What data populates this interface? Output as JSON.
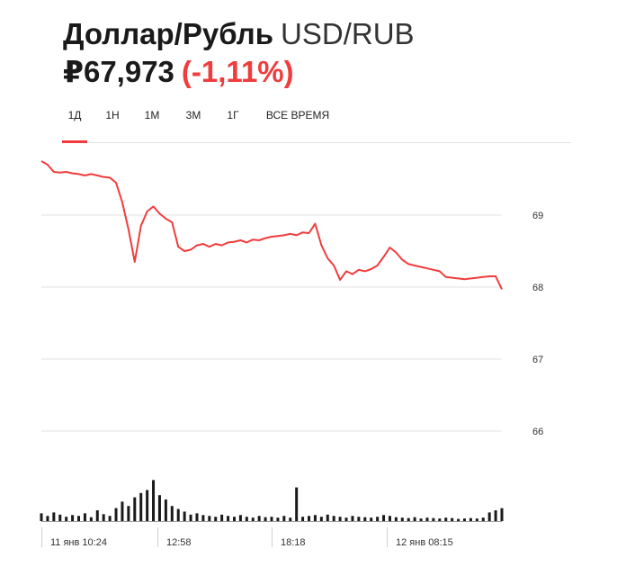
{
  "header": {
    "name": "Доллар/Рубль",
    "ticker": "USD/RUB",
    "price": "₽67,973",
    "change": "(-1,11%)"
  },
  "tabs": [
    {
      "label": "1Д",
      "active": true
    },
    {
      "label": "1Н",
      "active": false
    },
    {
      "label": "1М",
      "active": false
    },
    {
      "label": "3М",
      "active": false
    },
    {
      "label": "1Г",
      "active": false
    },
    {
      "label": "ВСЕ ВРЕМЯ",
      "active": false
    }
  ],
  "colors": {
    "accent": "#f03c3c",
    "line": "#f03c3c",
    "volume": "#1a1a1a",
    "grid": "#e3e3e3"
  },
  "chart_data": {
    "type": "line",
    "x_labels": [
      "11 янв 10:24",
      "12:58",
      "18:18",
      "12 янв 08:15"
    ],
    "y_ticks": [
      69,
      68,
      67,
      66
    ],
    "ylim": [
      65.55,
      69.8
    ],
    "price": [
      69.75,
      69.7,
      69.6,
      69.59,
      69.6,
      69.58,
      69.57,
      69.55,
      69.57,
      69.55,
      69.53,
      69.52,
      69.45,
      69.18,
      68.8,
      68.35,
      68.85,
      69.05,
      69.12,
      69.02,
      68.95,
      68.9,
      68.56,
      68.5,
      68.52,
      68.58,
      68.6,
      68.56,
      68.6,
      68.58,
      68.62,
      68.63,
      68.65,
      68.62,
      68.66,
      68.65,
      68.68,
      68.7,
      68.71,
      68.72,
      68.74,
      68.72,
      68.76,
      68.75,
      68.88,
      68.58,
      68.4,
      68.3,
      68.1,
      68.22,
      68.18,
      68.24,
      68.22,
      68.25,
      68.3,
      68.42,
      68.55,
      68.48,
      68.38,
      68.32,
      68.3,
      68.28,
      68.26,
      68.24,
      68.22,
      68.14,
      68.13,
      68.12,
      68.11,
      68.12,
      68.13,
      68.14,
      68.15,
      68.15,
      67.97
    ],
    "volume": [
      0.18,
      0.12,
      0.2,
      0.15,
      0.1,
      0.14,
      0.12,
      0.18,
      0.09,
      0.25,
      0.16,
      0.12,
      0.3,
      0.45,
      0.35,
      0.55,
      0.65,
      0.72,
      0.95,
      0.6,
      0.5,
      0.35,
      0.28,
      0.22,
      0.15,
      0.18,
      0.14,
      0.12,
      0.1,
      0.15,
      0.12,
      0.1,
      0.14,
      0.1,
      0.08,
      0.12,
      0.09,
      0.1,
      0.08,
      0.12,
      0.08,
      0.78,
      0.1,
      0.12,
      0.14,
      0.1,
      0.15,
      0.12,
      0.1,
      0.08,
      0.12,
      0.1,
      0.09,
      0.08,
      0.1,
      0.14,
      0.12,
      0.09,
      0.08,
      0.07,
      0.09,
      0.06,
      0.08,
      0.07,
      0.06,
      0.08,
      0.07,
      0.05,
      0.06,
      0.07,
      0.06,
      0.08,
      0.2,
      0.25,
      0.3
    ],
    "grid": true
  }
}
